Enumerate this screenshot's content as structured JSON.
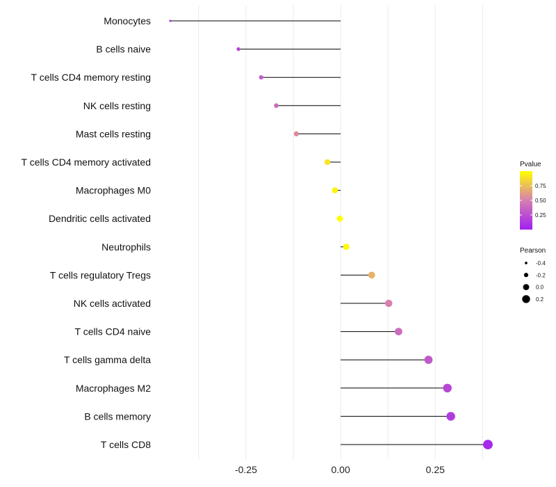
{
  "chart_data": {
    "type": "lollipop",
    "title": "",
    "xlabel": "",
    "ylabel": "",
    "xlim": [
      -0.45,
      0.4
    ],
    "xticks": [
      -0.25,
      0.0,
      0.25
    ],
    "xtick_labels": [
      "-0.25",
      "0.00",
      "0.25"
    ],
    "grid": "vertical",
    "categories": [
      "Monocytes",
      "B cells naive",
      "T cells CD4 memory resting",
      "NK cells resting",
      "Mast cells resting",
      "T cells CD4 memory activated",
      "Macrophages M0",
      "Dendritic cells activated",
      "Neutrophils",
      "T cells regulatory  Tregs",
      "NK cells activated",
      "T cells CD4 naive",
      "T cells gamma delta",
      "Macrophages M2",
      "B cells memory",
      "T cells CD8"
    ],
    "pearson": [
      -0.45,
      -0.27,
      -0.21,
      -0.17,
      -0.117,
      -0.035,
      -0.015,
      -0.002,
      0.015,
      0.082,
      0.127,
      0.153,
      0.232,
      0.282,
      0.291,
      0.389
    ],
    "pvalue": [
      0.0,
      0.2,
      0.3,
      0.4,
      0.55,
      0.9,
      0.95,
      1.0,
      0.98,
      0.7,
      0.5,
      0.4,
      0.3,
      0.2,
      0.15,
      0.05
    ],
    "legends": {
      "color": {
        "title": "Pvalue",
        "labels": [
          "0.75",
          "0.50",
          "0.25"
        ],
        "values": [
          0.75,
          0.5,
          0.25
        ],
        "range": [
          0,
          1
        ],
        "low_color": "#a020f0",
        "mid_color": "#d67fb0",
        "high_color": "#ffff00"
      },
      "size": {
        "title": "Pearson",
        "labels": [
          "-0.4",
          "-0.2",
          "0.0",
          "0.2"
        ],
        "values": [
          -0.4,
          -0.2,
          0.0,
          0.2
        ]
      }
    },
    "colors": {
      "line": "#000000",
      "grid": "#ebebeb"
    }
  }
}
